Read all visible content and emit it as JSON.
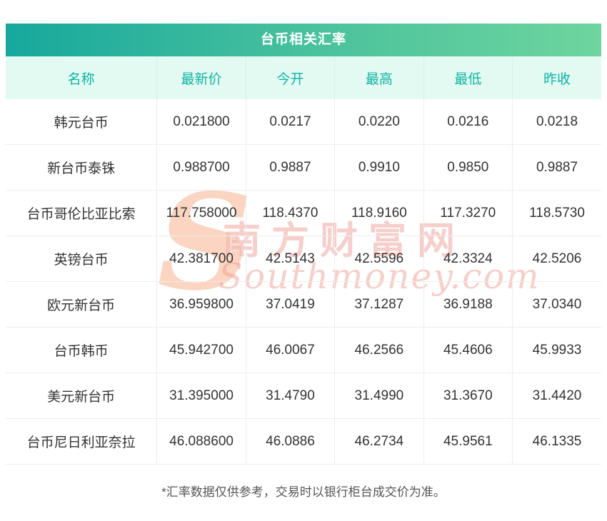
{
  "title": "台币相关汇率",
  "chart_data": {
    "type": "table",
    "title": "台币相关汇率",
    "headers": [
      "名称",
      "最新价",
      "今开",
      "最高",
      "最低",
      "昨收"
    ],
    "rows": [
      [
        "韩元台币",
        "0.021800",
        "0.0217",
        "0.0220",
        "0.0216",
        "0.0218"
      ],
      [
        "新台币泰铢",
        "0.988700",
        "0.9887",
        "0.9910",
        "0.9850",
        "0.9887"
      ],
      [
        "台币哥伦比亚比索",
        "117.758000",
        "118.4370",
        "118.9160",
        "117.3270",
        "118.5730"
      ],
      [
        "英镑台币",
        "42.381700",
        "42.5143",
        "42.5596",
        "42.3324",
        "42.5206"
      ],
      [
        "欧元新台币",
        "36.959800",
        "37.0419",
        "37.1287",
        "36.9188",
        "37.0340"
      ],
      [
        "台币韩币",
        "45.942700",
        "46.0067",
        "46.2566",
        "45.4606",
        "45.9933"
      ],
      [
        "美元新台币",
        "31.395000",
        "31.4790",
        "31.4990",
        "31.3670",
        "31.4420"
      ],
      [
        "台币尼日利亚奈拉",
        "46.088600",
        "46.0886",
        "46.2734",
        "45.9561",
        "46.1335"
      ]
    ]
  },
  "footnote": "*汇率数据仅供参考，交易时以银行柜台成交价为准。",
  "watermark": {
    "s_glyph": "S",
    "cn": "南方财富网",
    "en": "Southmoney.com"
  },
  "colors": {
    "title_gradient_start": "#17a89d",
    "title_gradient_end": "#6ed59e",
    "header_bg": "#e3faf2",
    "header_text": "#0db3a3",
    "body_text": "#333333",
    "row_border": "#ededed",
    "watermark": "#ea8a80"
  }
}
